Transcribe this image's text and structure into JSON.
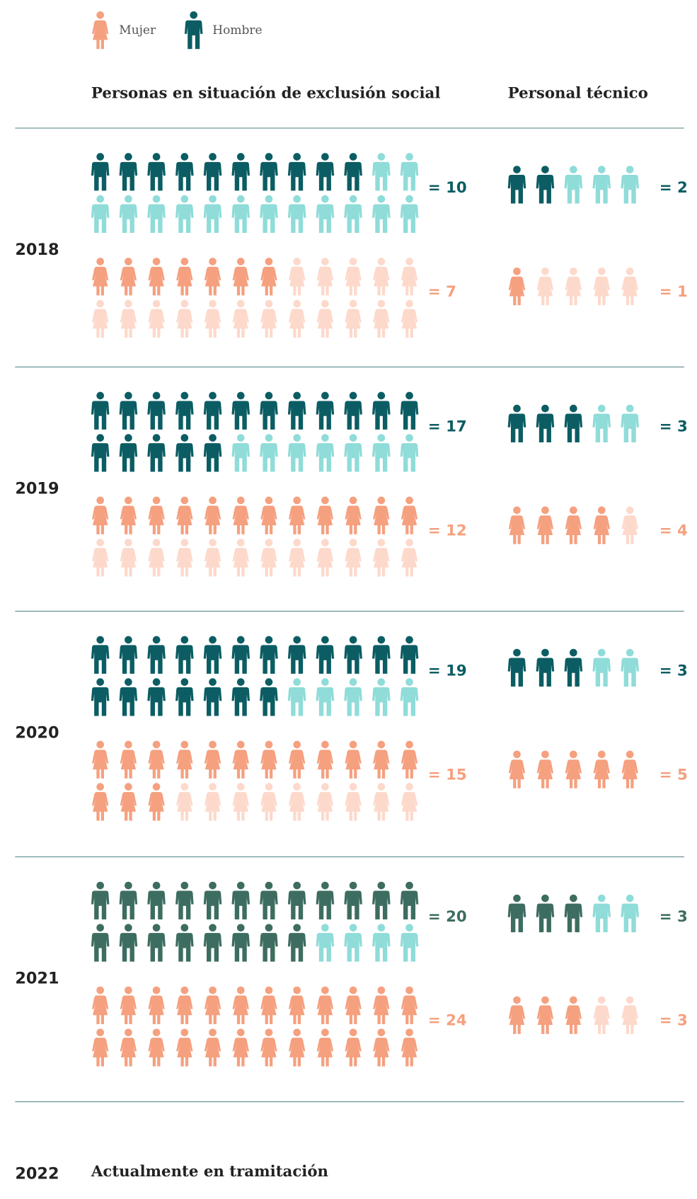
{
  "legend": [
    {
      "label": "Mujer",
      "kind": "women"
    },
    {
      "label": "Hombre",
      "kind": "men"
    }
  ],
  "headers": [
    "Personas en situación de exclusión social",
    "Personal técnico"
  ],
  "colors": {
    "men": "#0b5d63",
    "men_empty": "#8fdcd9",
    "women": "#f5a07f",
    "women_empty": "#fdd9cb"
  },
  "years": [
    {
      "year": "2018",
      "groups": [
        {
          "values": [
            10,
            7
          ],
          "value_labels": [
            "= 10",
            "= 7"
          ]
        },
        {
          "values": [
            2,
            1
          ],
          "value_labels": [
            "= 2",
            "= 1"
          ]
        }
      ]
    },
    {
      "year": "2019",
      "groups": [
        {
          "values": [
            17,
            12
          ],
          "value_labels": [
            "= 17",
            "= 12"
          ]
        },
        {
          "values": [
            3,
            4
          ],
          "value_labels": [
            "= 3",
            "= 4"
          ]
        }
      ]
    },
    {
      "year": "2020",
      "groups": [
        {
          "values": [
            19,
            15
          ],
          "value_labels": [
            "= 19",
            "= 15"
          ]
        },
        {
          "values": [
            3,
            5
          ],
          "value_labels": [
            "= 3",
            "= 5"
          ]
        }
      ]
    },
    {
      "year": "2021",
      "men_color": "#3d6d60",
      "groups": [
        {
          "values": [
            20,
            24
          ],
          "value_labels": [
            "= 20",
            "= 24"
          ]
        },
        {
          "values": [
            3,
            3
          ],
          "value_labels": [
            "= 3",
            "= 3"
          ]
        }
      ]
    }
  ],
  "pending": {
    "year": "2022",
    "note": "Actualmente en tramitación"
  }
}
